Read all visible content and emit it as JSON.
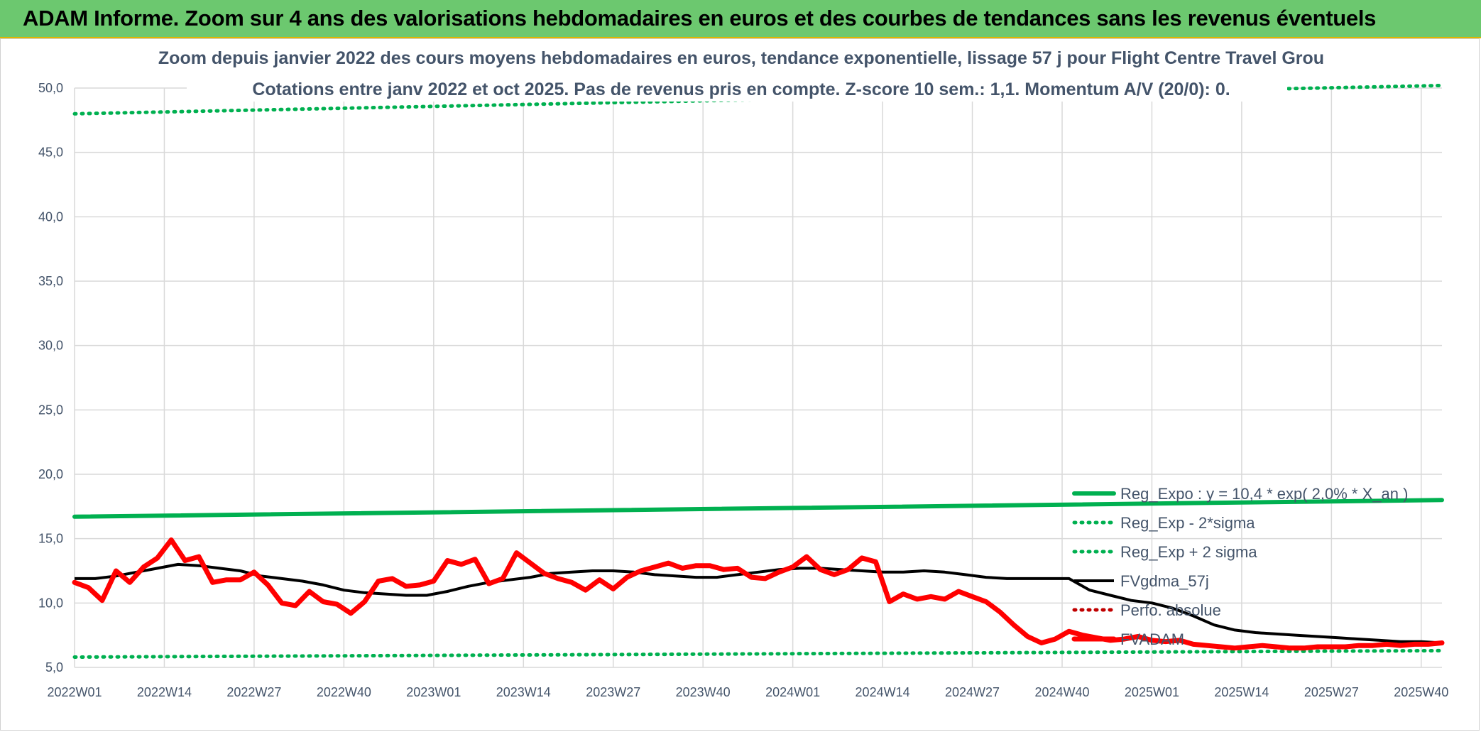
{
  "banner": {
    "title": "ADAM Informe. Zoom sur 4 ans des valorisations hebdomadaires en euros et des courbes de tendances sans les revenus éventuels"
  },
  "colors": {
    "banner_bg": "#6cc86f",
    "reg_expo": "#00b050",
    "fvadam": "#ff0000",
    "fvgdma": "#000000",
    "perfo": "#c00000",
    "text": "#44546a"
  },
  "chart_data": {
    "type": "line",
    "title": "Zoom depuis janvier 2022 des cours moyens hebdomadaires en euros, tendance exponentielle, lissage 57 j pour Flight Centre Travel Grou",
    "subtitle": "Cotations entre janv 2022 et oct 2025. Pas de revenus pris en compte. Z-score 10 sem.: 1,1. Momentum A/V (20/0): 0.",
    "xlabel": "",
    "ylabel": "",
    "ylim": [
      5,
      50
    ],
    "yticks": [
      "5,0",
      "10,0",
      "15,0",
      "20,0",
      "25,0",
      "30,0",
      "35,0",
      "40,0",
      "45,0",
      "50,0"
    ],
    "x_ticks": [
      "2022W01",
      "2022W14",
      "2022W27",
      "2022W40",
      "2023W01",
      "2023W14",
      "2023W27",
      "2023W40",
      "2024W01",
      "2024W14",
      "2024W27",
      "2024W40",
      "2025W01",
      "2025W14",
      "2025W27",
      "2025W40"
    ],
    "n_weeks": 199,
    "grid": true,
    "legend_position": "bottom-right",
    "series": [
      {
        "name": "Reg_Expo : y = 10,4 * exp( 2,0% * X_an )",
        "style": "solid-thick",
        "color": "#00b050",
        "x": [
          0,
          198
        ],
        "values": [
          16.7,
          18.0
        ]
      },
      {
        "name": "Reg_Exp - 2*sigma",
        "style": "dotted",
        "color": "#00b050",
        "x": [
          0,
          198
        ],
        "values": [
          5.8,
          6.3
        ]
      },
      {
        "name": "Reg_Exp + 2 sigma",
        "style": "dotted",
        "color": "#00b050",
        "x": [
          0,
          198
        ],
        "values": [
          48.0,
          50.2
        ]
      },
      {
        "name": "FVgdma_57j",
        "style": "solid",
        "color": "#000000",
        "x": [
          0,
          3,
          6,
          9,
          12,
          15,
          18,
          21,
          24,
          27,
          30,
          33,
          36,
          39,
          42,
          45,
          48,
          51,
          54,
          57,
          60,
          63,
          66,
          69,
          72,
          75,
          78,
          81,
          84,
          87,
          90,
          93,
          96,
          99,
          102,
          105,
          108,
          111,
          114,
          117,
          120,
          123,
          126,
          129,
          132,
          135,
          138,
          141,
          144,
          147,
          150,
          153,
          156,
          159,
          162,
          165,
          168,
          171,
          174,
          177,
          180,
          183,
          186,
          189,
          192,
          195,
          198
        ],
        "values": [
          11.9,
          11.9,
          12.1,
          12.4,
          12.7,
          13.0,
          12.9,
          12.7,
          12.5,
          12.1,
          11.9,
          11.7,
          11.4,
          11.0,
          10.8,
          10.7,
          10.6,
          10.6,
          10.9,
          11.3,
          11.6,
          11.8,
          12.0,
          12.3,
          12.4,
          12.5,
          12.5,
          12.4,
          12.2,
          12.1,
          12.0,
          12.0,
          12.2,
          12.4,
          12.6,
          12.7,
          12.7,
          12.6,
          12.5,
          12.4,
          12.4,
          12.5,
          12.4,
          12.2,
          12.0,
          11.9,
          11.9,
          11.9,
          11.9,
          11.0,
          10.6,
          10.2,
          10.0,
          9.6,
          9.0,
          8.3,
          7.9,
          7.7,
          7.6,
          7.5,
          7.4,
          7.3,
          7.2,
          7.1,
          7.0,
          7.0,
          6.9
        ]
      },
      {
        "name": "Perfo. absolue",
        "style": "dotted",
        "color": "#c00000",
        "x": [],
        "values": []
      },
      {
        "name": "FVADAM",
        "style": "solid-thick",
        "color": "#ff0000",
        "x": [
          0,
          2,
          4,
          6,
          8,
          10,
          12,
          14,
          16,
          18,
          20,
          22,
          24,
          26,
          28,
          30,
          32,
          34,
          36,
          38,
          40,
          42,
          44,
          46,
          48,
          50,
          52,
          54,
          56,
          58,
          60,
          62,
          64,
          66,
          68,
          70,
          72,
          74,
          76,
          78,
          80,
          82,
          84,
          86,
          88,
          90,
          92,
          94,
          96,
          98,
          100,
          102,
          104,
          106,
          108,
          110,
          112,
          114,
          116,
          118,
          120,
          122,
          124,
          126,
          128,
          130,
          132,
          134,
          136,
          138,
          140,
          142,
          144,
          146,
          148,
          150,
          152,
          154,
          156,
          158,
          160,
          162,
          164,
          166,
          168,
          170,
          172,
          174,
          176,
          178,
          180,
          182,
          184,
          186,
          188,
          190,
          192,
          194,
          196,
          198
        ],
        "values": [
          11.6,
          11.2,
          10.2,
          12.5,
          11.6,
          12.8,
          13.5,
          14.9,
          13.3,
          13.6,
          11.6,
          11.8,
          11.8,
          12.4,
          11.4,
          10.0,
          9.8,
          10.9,
          10.1,
          9.9,
          9.2,
          10.1,
          11.7,
          11.9,
          11.3,
          11.4,
          11.7,
          13.3,
          13.0,
          13.4,
          11.5,
          11.9,
          13.9,
          13.1,
          12.3,
          11.9,
          11.6,
          11.0,
          11.8,
          11.1,
          12.0,
          12.5,
          12.8,
          13.1,
          12.7,
          12.9,
          12.9,
          12.6,
          12.7,
          12.0,
          11.9,
          12.4,
          12.8,
          13.6,
          12.6,
          12.2,
          12.6,
          13.5,
          13.2,
          10.1,
          10.7,
          10.3,
          10.5,
          10.3,
          10.9,
          10.5,
          10.1,
          9.3,
          8.3,
          7.4,
          6.9,
          7.2,
          7.8,
          7.5,
          7.3,
          7.1,
          7.2,
          7.4,
          7.1,
          7.0,
          7.1,
          6.8,
          6.7,
          6.6,
          6.5,
          6.6,
          6.7,
          6.6,
          6.5,
          6.5,
          6.6,
          6.6,
          6.6,
          6.7,
          6.7,
          6.8,
          6.7,
          6.8,
          6.8,
          6.9
        ]
      }
    ]
  }
}
